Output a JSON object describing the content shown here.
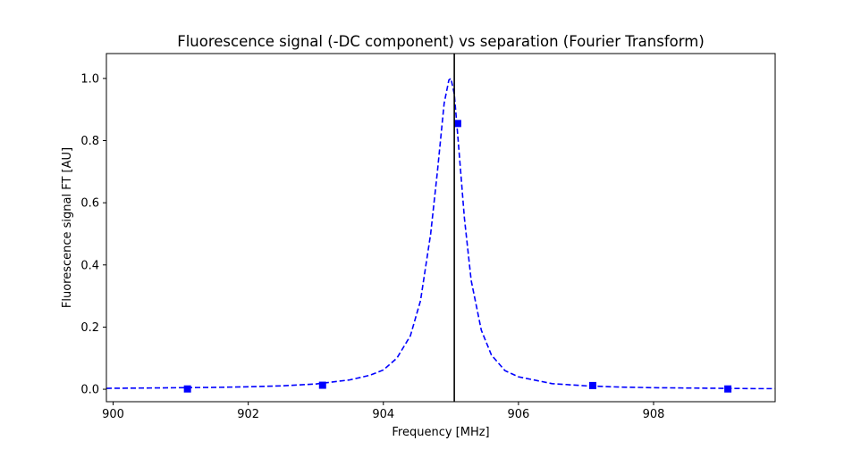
{
  "chart_data": {
    "type": "line",
    "title": "Fluorescence signal (-DC component) vs separation (Fourier Transform)",
    "xlabel": "Frequency [MHz]",
    "ylabel": "Fluorescence signal FT [AU]",
    "xlim": [
      899.9,
      909.8
    ],
    "ylim": [
      -0.04,
      1.08
    ],
    "xticks": [
      900,
      902,
      904,
      906,
      908
    ],
    "xtick_labels": [
      "900",
      "902",
      "904",
      "906",
      "908"
    ],
    "yticks": [
      0.0,
      0.2,
      0.4,
      0.6,
      0.8,
      1.0
    ],
    "ytick_labels": [
      "0.0",
      "0.2",
      "0.4",
      "0.6",
      "0.8",
      "1.0"
    ],
    "grid": false,
    "legend": "none",
    "series": [
      {
        "style": "dashed-line",
        "color": "#0000ff",
        "x": [
          899.9,
          900.5,
          901.0,
          901.5,
          902.0,
          902.5,
          903.0,
          903.5,
          903.8,
          904.0,
          904.2,
          904.4,
          904.55,
          904.7,
          904.8,
          904.9,
          904.97,
          905.0,
          905.05,
          905.1,
          905.2,
          905.3,
          905.45,
          905.6,
          905.8,
          906.0,
          906.5,
          907.0,
          907.5,
          908.0,
          908.5,
          909.0,
          909.5,
          909.8
        ],
        "y": [
          0.003,
          0.004,
          0.005,
          0.006,
          0.008,
          0.011,
          0.017,
          0.03,
          0.045,
          0.062,
          0.1,
          0.172,
          0.285,
          0.5,
          0.7,
          0.92,
          0.995,
          1.0,
          0.95,
          0.82,
          0.55,
          0.35,
          0.19,
          0.11,
          0.06,
          0.04,
          0.018,
          0.011,
          0.007,
          0.005,
          0.004,
          0.003,
          0.002,
          0.002
        ]
      },
      {
        "style": "square-markers",
        "color": "#0000ff",
        "x": [
          901.1,
          903.1,
          905.1,
          907.1,
          909.1
        ],
        "y": [
          0.001,
          0.013,
          0.855,
          0.012,
          0.001
        ]
      }
    ],
    "vline": {
      "x": 905.05,
      "color": "#000000"
    }
  }
}
